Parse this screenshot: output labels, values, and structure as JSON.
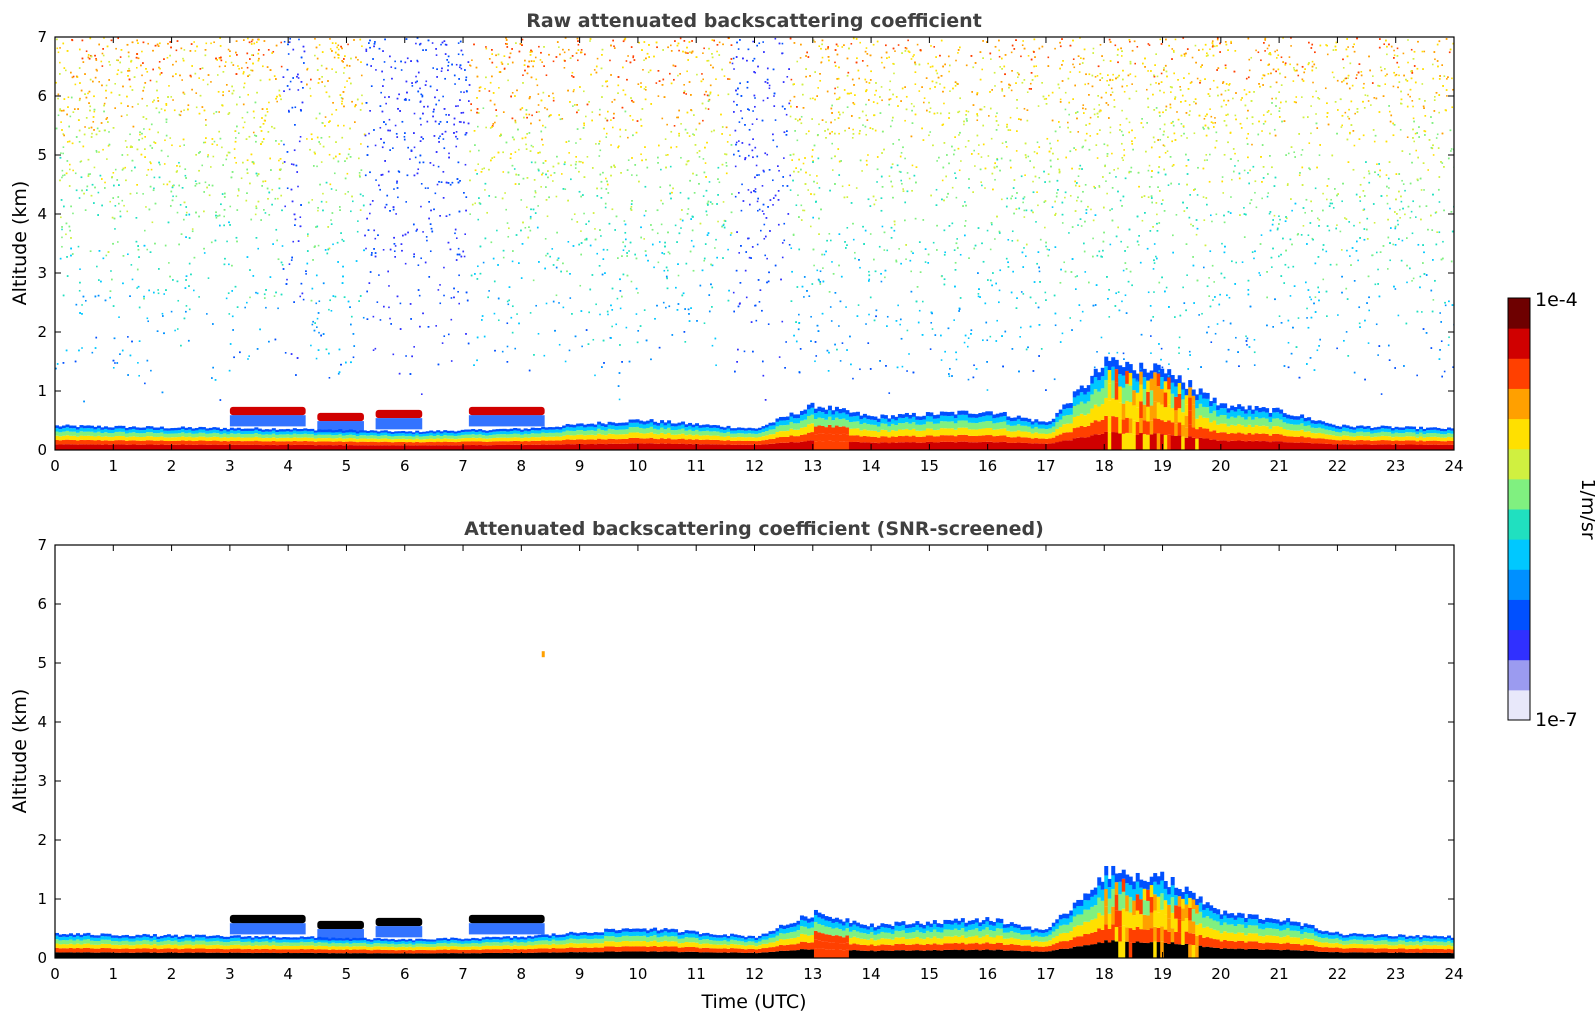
{
  "chart_data": [
    {
      "type": "heatmap",
      "title": "Raw attenuated backscattering coefficient",
      "xlabel": "",
      "ylabel": "Altitude (km)",
      "xlim": [
        0,
        24
      ],
      "ylim": [
        0,
        7
      ],
      "x_ticks": [
        "0",
        "1",
        "2",
        "3",
        "4",
        "5",
        "6",
        "7",
        "8",
        "9",
        "10",
        "11",
        "12",
        "13",
        "14",
        "15",
        "16",
        "17",
        "18",
        "19",
        "20",
        "21",
        "22",
        "23",
        "24"
      ],
      "y_ticks": [
        "0",
        "1",
        "2",
        "3",
        "4",
        "5",
        "6",
        "7"
      ],
      "features": {
        "boundary_layer_top_km": [
          [
            0,
            0.25
          ],
          [
            2,
            0.22
          ],
          [
            4,
            0.2
          ],
          [
            6,
            0.15
          ],
          [
            8,
            0.2
          ],
          [
            10,
            0.35
          ],
          [
            12,
            0.2
          ],
          [
            13,
            0.6
          ],
          [
            14,
            0.4
          ],
          [
            16,
            0.5
          ],
          [
            17,
            0.3
          ],
          [
            18,
            1.3
          ],
          [
            19,
            1.2
          ],
          [
            20,
            0.6
          ],
          [
            21,
            0.5
          ],
          [
            22,
            0.25
          ],
          [
            24,
            0.2
          ]
        ],
        "elevated_layers_km": [
          [
            3.0,
            4.3,
            0.65
          ],
          [
            4.5,
            5.3,
            0.55
          ],
          [
            5.5,
            6.3,
            0.6
          ],
          [
            7.1,
            8.4,
            0.65
          ]
        ],
        "noise_free_gaps_utc": [
          [
            3.9,
            4.3
          ],
          [
            5.3,
            7.1
          ],
          [
            11.6,
            12.6
          ]
        ]
      }
    },
    {
      "type": "heatmap",
      "title": "Attenuated backscattering coefficient (SNR-screened)",
      "xlabel": "Time (UTC)",
      "ylabel": "Altitude (km)",
      "xlim": [
        0,
        24
      ],
      "ylim": [
        0,
        7
      ],
      "x_ticks": [
        "0",
        "1",
        "2",
        "3",
        "4",
        "5",
        "6",
        "7",
        "8",
        "9",
        "10",
        "11",
        "12",
        "13",
        "14",
        "15",
        "16",
        "17",
        "18",
        "19",
        "20",
        "21",
        "22",
        "23",
        "24"
      ],
      "y_ticks": [
        "0",
        "1",
        "2",
        "3",
        "4",
        "5",
        "6",
        "7"
      ],
      "features": {
        "isolated_echo": {
          "time_utc": 8.35,
          "altitude_km": 5.15
        }
      }
    }
  ],
  "colorbar": {
    "label": "1/m/sr",
    "max_label": "1e-4",
    "min_label": "1e-7",
    "colors": [
      "#e8e8fa",
      "#9b9bf0",
      "#3030ff",
      "#0050ff",
      "#0090ff",
      "#00c8ff",
      "#20e0c0",
      "#80f080",
      "#d0f040",
      "#ffe000",
      "#ffa000",
      "#ff4000",
      "#d00000",
      "#6e0000"
    ]
  }
}
